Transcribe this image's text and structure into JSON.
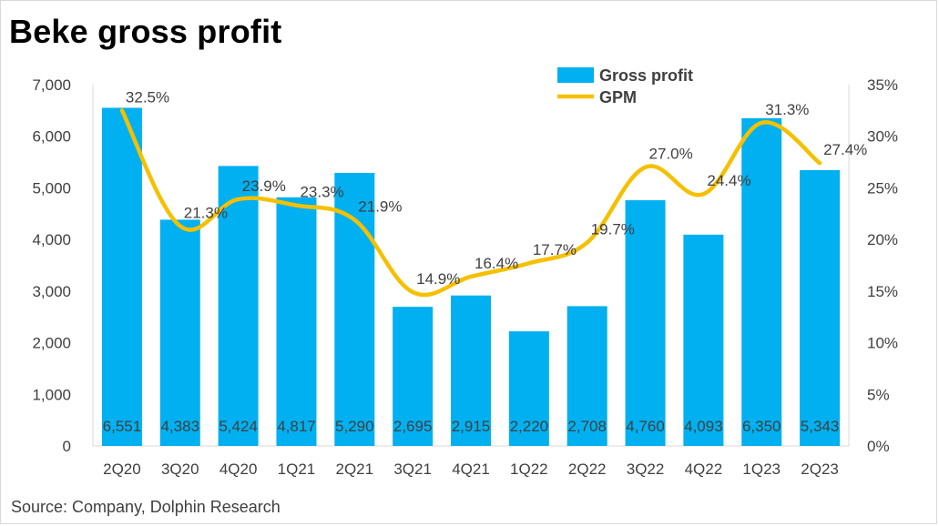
{
  "title": "Beke gross profit",
  "source": "Source: Company, Dolphin Research",
  "colors": {
    "bar": "#00b0f0",
    "line": "#f5c000",
    "text": "#404040",
    "axis": "#d9d9d9"
  },
  "chart_data": {
    "type": "bar",
    "categories": [
      "2Q20",
      "3Q20",
      "4Q20",
      "1Q21",
      "2Q21",
      "3Q21",
      "4Q21",
      "1Q22",
      "2Q22",
      "3Q22",
      "4Q22",
      "1Q23",
      "2Q23"
    ],
    "series": [
      {
        "name": "Gross profit",
        "type": "bar",
        "axis": "left",
        "values": [
          6551,
          4383,
          5424,
          4817,
          5290,
          2695,
          2915,
          2220,
          2708,
          4760,
          4093,
          6350,
          5343
        ],
        "labels": [
          "6,551",
          "4,383",
          "5,424",
          "4,817",
          "5,290",
          "2,695",
          "2,915",
          "2,220",
          "2,708",
          "4,760",
          "4,093",
          "6,350",
          "5,343"
        ]
      },
      {
        "name": "GPM",
        "type": "line",
        "axis": "right",
        "values": [
          32.5,
          21.3,
          23.9,
          23.3,
          21.9,
          14.9,
          16.4,
          17.7,
          19.7,
          27.0,
          24.4,
          31.3,
          27.4
        ],
        "labels": [
          "32.5%",
          "21.3%",
          "23.9%",
          "23.3%",
          "21.9%",
          "14.9%",
          "16.4%",
          "17.7%",
          "19.7%",
          "27.0%",
          "24.4%",
          "31.3%",
          "27.4%"
        ]
      }
    ],
    "y_left": {
      "min": 0,
      "max": 7000,
      "ticks": [
        "0",
        "1,000",
        "2,000",
        "3,000",
        "4,000",
        "5,000",
        "6,000",
        "7,000"
      ]
    },
    "y_right": {
      "min": 0,
      "max": 35,
      "ticks": [
        "0%",
        "5%",
        "10%",
        "15%",
        "20%",
        "25%",
        "30%",
        "35%"
      ]
    },
    "grid": false,
    "legend_position": "top-right"
  }
}
